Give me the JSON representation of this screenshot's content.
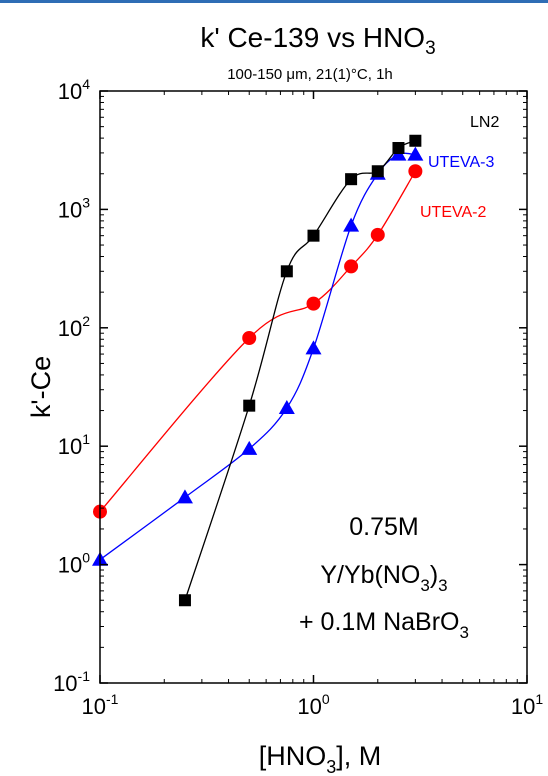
{
  "chart_data": {
    "type": "scatter",
    "title": "k' Ce-139 vs HNO",
    "title_sub": "3",
    "subtitle": "100-150 μm, 21(1)°C, 1h",
    "xlabel": "[HNO",
    "xlabel_sub": "3",
    "xlabel_tail": "], M",
    "ylabel": "k'-Ce",
    "x_scale": "log",
    "y_scale": "log",
    "xlim": [
      0.1,
      10
    ],
    "ylim": [
      0.1,
      10000
    ],
    "x_ticks": [
      {
        "value": 0.1,
        "base": "10",
        "exp": "-1"
      },
      {
        "value": 1,
        "base": "10",
        "exp": "0"
      },
      {
        "value": 10,
        "base": "10",
        "exp": "1"
      }
    ],
    "y_ticks": [
      {
        "value": 0.1,
        "base": "10",
        "exp": "-1"
      },
      {
        "value": 1,
        "base": "10",
        "exp": "0"
      },
      {
        "value": 10,
        "base": "10",
        "exp": "1"
      },
      {
        "value": 100,
        "base": "10",
        "exp": "2"
      },
      {
        "value": 1000,
        "base": "10",
        "exp": "3"
      },
      {
        "value": 10000,
        "base": "10",
        "exp": "4"
      }
    ],
    "grid": false,
    "series": [
      {
        "name": "LN2",
        "color": "#000000",
        "marker": "square",
        "x": [
          0.25,
          0.5,
          0.75,
          1.0,
          1.5,
          2.0,
          2.5,
          3.0
        ],
        "y": [
          0.5,
          22,
          300,
          600,
          1800,
          2100,
          3300,
          3800
        ]
      },
      {
        "name": "UTEVA-3",
        "color": "#0000ff",
        "marker": "triangle",
        "x": [
          0.1,
          0.25,
          0.5,
          0.75,
          1.0,
          1.5,
          2.0,
          2.5,
          3.0
        ],
        "y": [
          1.1,
          3.7,
          9.5,
          21,
          67,
          730,
          2000,
          2900,
          2900
        ]
      },
      {
        "name": "UTEVA-2",
        "color": "#ff0000",
        "marker": "circle",
        "x": [
          0.1,
          0.5,
          1.0,
          1.5,
          2.0,
          3.0
        ],
        "y": [
          2.8,
          82,
          160,
          330,
          610,
          2100
        ]
      }
    ],
    "annotation": {
      "line1": "0.75M",
      "line2_a": "Y/Yb(NO",
      "line2_sub": "3",
      "line2_b": ")",
      "line2_sub2": "3",
      "line3_a": "+ 0.1M NaBrO",
      "line3_sub": "3"
    }
  }
}
